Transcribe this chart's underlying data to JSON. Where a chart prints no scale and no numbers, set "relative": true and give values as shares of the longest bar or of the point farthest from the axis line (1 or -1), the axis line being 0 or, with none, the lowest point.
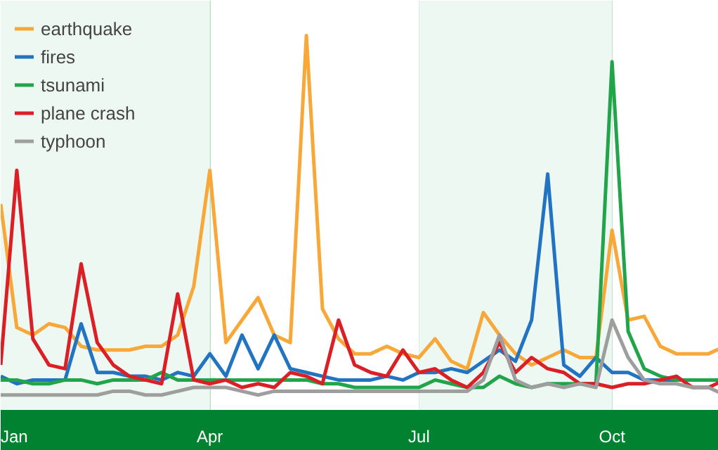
{
  "chart_data": {
    "type": "line",
    "relative": true,
    "categories": [
      "Jan",
      null,
      null,
      null,
      null,
      null,
      null,
      null,
      null,
      null,
      null,
      null,
      null,
      "Apr",
      null,
      null,
      null,
      null,
      null,
      null,
      null,
      null,
      null,
      null,
      null,
      null,
      "Jul",
      null,
      null,
      null,
      null,
      null,
      null,
      null,
      null,
      null,
      null,
      null,
      "Oct",
      null,
      null,
      null,
      null,
      null,
      null,
      null
    ],
    "series": [
      {
        "name": "earthquake",
        "color": "#f7a839",
        "values": [
          0.55,
          0.22,
          0.2,
          0.23,
          0.22,
          0.17,
          0.16,
          0.16,
          0.16,
          0.17,
          0.17,
          0.2,
          0.33,
          0.64,
          0.18,
          0.24,
          0.3,
          0.2,
          0.18,
          1.0,
          0.27,
          0.19,
          0.15,
          0.15,
          0.17,
          0.15,
          0.14,
          0.19,
          0.13,
          0.11,
          0.26,
          0.2,
          0.15,
          0.12,
          0.14,
          0.16,
          0.14,
          0.14,
          0.48,
          0.24,
          0.25,
          0.17,
          0.15,
          0.15,
          0.15,
          0.17
        ]
      },
      {
        "name": "fires",
        "color": "#2274c3",
        "values": [
          0.09,
          0.07,
          0.08,
          0.08,
          0.08,
          0.23,
          0.1,
          0.1,
          0.09,
          0.09,
          0.08,
          0.1,
          0.09,
          0.15,
          0.09,
          0.2,
          0.11,
          0.2,
          0.11,
          0.1,
          0.09,
          0.08,
          0.08,
          0.08,
          0.09,
          0.08,
          0.1,
          0.1,
          0.11,
          0.1,
          0.13,
          0.16,
          0.13,
          0.24,
          0.63,
          0.12,
          0.09,
          0.14,
          0.1,
          0.1,
          0.08,
          0.08,
          0.08,
          null,
          null,
          null
        ]
      },
      {
        "name": "tsunami",
        "color": "#22a54a",
        "values": [
          0.08,
          0.08,
          0.07,
          0.07,
          0.08,
          0.08,
          0.07,
          0.08,
          0.08,
          0.08,
          0.1,
          0.08,
          0.08,
          0.08,
          0.08,
          0.08,
          0.08,
          0.08,
          0.08,
          0.08,
          0.07,
          0.07,
          0.06,
          0.06,
          0.06,
          0.06,
          0.06,
          0.08,
          0.07,
          0.06,
          0.06,
          0.09,
          0.07,
          0.06,
          0.07,
          0.07,
          0.07,
          0.07,
          0.93,
          0.21,
          0.11,
          0.09,
          0.08,
          0.08,
          0.08,
          0.08
        ]
      },
      {
        "name": "plane crash",
        "color": "#db1f26",
        "values": [
          0.12,
          0.64,
          0.19,
          0.12,
          0.11,
          0.39,
          0.18,
          0.12,
          0.09,
          0.08,
          0.07,
          0.31,
          0.08,
          0.07,
          0.08,
          0.06,
          0.07,
          0.06,
          0.1,
          0.09,
          0.07,
          0.24,
          0.12,
          0.1,
          0.09,
          0.16,
          0.1,
          0.11,
          0.08,
          0.06,
          0.1,
          0.18,
          0.1,
          0.14,
          0.11,
          0.1,
          0.07,
          0.07,
          0.06,
          0.07,
          0.07,
          0.08,
          0.09,
          0.06,
          0.06,
          0.08
        ]
      },
      {
        "name": "typhoon",
        "color": "#9e9e9e",
        "values": [
          0.04,
          0.04,
          0.04,
          0.04,
          0.04,
          0.04,
          0.04,
          0.05,
          0.05,
          0.04,
          0.04,
          0.05,
          0.06,
          0.06,
          0.06,
          0.05,
          0.04,
          0.05,
          0.05,
          0.05,
          0.05,
          0.05,
          0.05,
          0.05,
          0.05,
          0.05,
          0.05,
          0.05,
          0.05,
          0.05,
          0.08,
          0.2,
          0.08,
          0.06,
          0.07,
          0.06,
          0.07,
          0.06,
          0.24,
          0.14,
          0.08,
          0.07,
          0.07,
          0.06,
          0.06,
          0.04
        ]
      }
    ],
    "bands": [
      {
        "axis": "x",
        "from": "Jan",
        "to": "Apr",
        "color": "#eef8f2"
      },
      {
        "axis": "x",
        "from": "Jul",
        "to": "Oct",
        "color": "#eef8f2"
      }
    ],
    "legend": "top left",
    "grid": "x"
  }
}
